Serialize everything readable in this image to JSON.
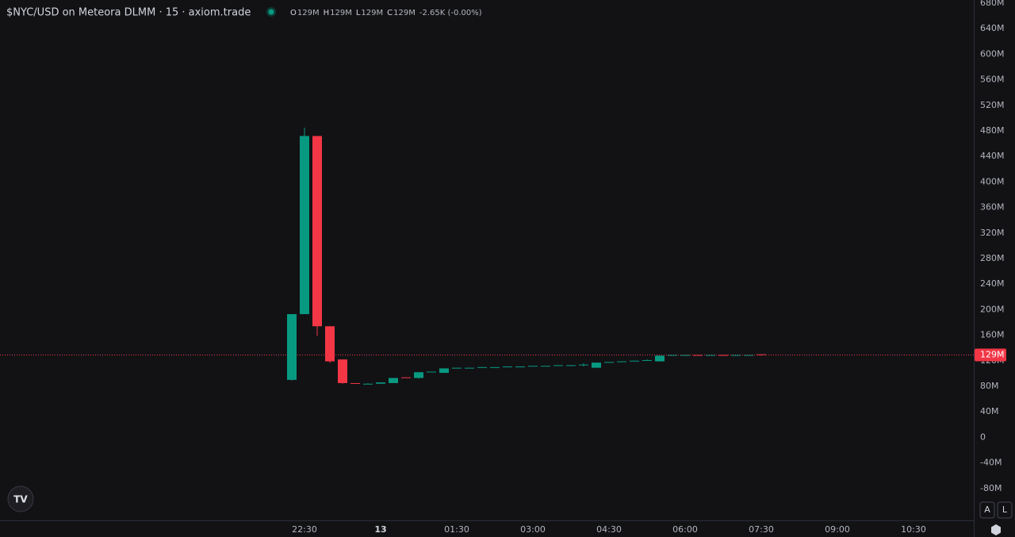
{
  "chart_data": {
    "type": "candlestick",
    "title": "$NYC/USD on Meteora DLMM · 15 · axiom.trade",
    "legend_ohlc": [
      {
        "key": "O",
        "text": "129M"
      },
      {
        "key": "H",
        "text": "129M"
      },
      {
        "key": "L",
        "text": "129M"
      },
      {
        "key": "C",
        "text": "129M"
      }
    ],
    "change": "-2.65K (-0.00%)",
    "up_color": "#089981",
    "down_color": "#f23645",
    "categories": [
      null,
      "22:30",
      null,
      null,
      null,
      null,
      null,
      "13",
      null,
      null,
      null,
      null,
      null,
      "01:30",
      null,
      null,
      null,
      null,
      null,
      "03:00",
      null,
      null,
      null,
      null,
      null,
      "04:30",
      null,
      null,
      null,
      null,
      null,
      "06:00",
      null,
      null,
      null,
      null,
      null,
      "07:30",
      null,
      null,
      null,
      null,
      null,
      "09:00",
      null,
      null,
      null,
      null,
      null,
      "10:30",
      null,
      null,
      null,
      null
    ],
    "open": [
      90,
      193,
      472,
      174,
      122,
      85,
      84,
      84,
      85,
      94,
      93,
      102,
      101,
      108,
      109,
      109,
      110,
      110,
      111,
      111,
      112,
      112,
      113,
      113,
      109,
      117,
      118,
      119,
      120,
      119,
      128,
      129,
      129,
      128,
      129,
      128,
      129,
      130,
      null,
      null,
      null,
      null,
      null,
      null,
      null,
      null,
      null,
      null,
      null,
      null,
      null,
      null,
      null,
      null
    ],
    "high": [
      193,
      485,
      472,
      174,
      122,
      85,
      85,
      86,
      93,
      94,
      102,
      103,
      108,
      109,
      109,
      110,
      110,
      111,
      111,
      112,
      112,
      113,
      113,
      116,
      117,
      118,
      119,
      120,
      122,
      128,
      129,
      129,
      129,
      129,
      129,
      129,
      129,
      130,
      null,
      null,
      null,
      null,
      null,
      null,
      null,
      null,
      null,
      null,
      null,
      null,
      null,
      null,
      null,
      null
    ],
    "low": [
      89,
      193,
      159,
      117,
      84,
      84,
      84,
      84,
      85,
      93,
      92,
      102,
      101,
      108,
      108,
      109,
      109,
      110,
      110,
      111,
      111,
      112,
      112,
      111,
      109,
      117,
      118,
      119,
      120,
      119,
      128,
      128,
      128,
      128,
      128,
      128,
      128,
      128,
      null,
      null,
      null,
      null,
      null,
      null,
      null,
      null,
      null,
      null,
      null,
      null,
      null,
      null,
      null,
      null
    ],
    "close": [
      193,
      472,
      174,
      119,
      85,
      84,
      84,
      86,
      93,
      93,
      102,
      103,
      108,
      109,
      109,
      110,
      110,
      111,
      111,
      112,
      112,
      113,
      113,
      114,
      117,
      118,
      119,
      120,
      121,
      128,
      129,
      129,
      128,
      129,
      128,
      129,
      129,
      129,
      null,
      null,
      null,
      null,
      null,
      null,
      null,
      null,
      null,
      null,
      null,
      null,
      null,
      null,
      null,
      null
    ],
    "ylim": [
      -130,
      685
    ],
    "yticks": [
      {
        "value": 680,
        "label": "680M"
      },
      {
        "value": 640,
        "label": "640M"
      },
      {
        "value": 600,
        "label": "600M"
      },
      {
        "value": 560,
        "label": "560M"
      },
      {
        "value": 520,
        "label": "520M"
      },
      {
        "value": 480,
        "label": "480M"
      },
      {
        "value": 440,
        "label": "440M"
      },
      {
        "value": 400,
        "label": "400M"
      },
      {
        "value": 360,
        "label": "360M"
      },
      {
        "value": 320,
        "label": "320M"
      },
      {
        "value": 280,
        "label": "280M"
      },
      {
        "value": 240,
        "label": "240M"
      },
      {
        "value": 200,
        "label": "200M"
      },
      {
        "value": 160,
        "label": "160M"
      },
      {
        "value": 120,
        "label": "120M"
      },
      {
        "value": 80,
        "label": "80M"
      },
      {
        "value": 40,
        "label": "40M"
      },
      0,
      {
        "value": -40,
        "label": "-40M"
      },
      {
        "value": -80,
        "label": "-80M"
      }
    ],
    "last_price": {
      "value": 129,
      "label": "129M"
    },
    "scale_buttons": [
      "A",
      "L"
    ]
  }
}
